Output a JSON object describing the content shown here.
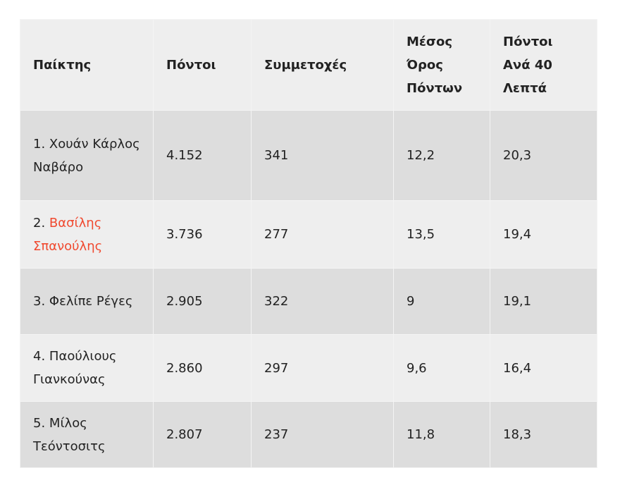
{
  "headers": [
    "Παίκτης",
    "Πόντοι",
    "Συμμετοχές",
    "Μέσος Όρος Πόντων",
    "Πόντοι Ανά 40 Λεπτά"
  ],
  "rows": [
    {
      "rank": "1.",
      "name": "Χουάν Κάρλος Ναβάρο",
      "points": "4.152",
      "games": "341",
      "avg": "12,2",
      "per40": "20,3"
    },
    {
      "rank": "2.",
      "name": "Βασίλης Σπανούλης",
      "points": "3.736",
      "games": "277",
      "avg": "13,5",
      "per40": "19,4",
      "link": true
    },
    {
      "rank": "3.",
      "name": "Φελίπε Ρέγες",
      "points": "2.905",
      "games": "322",
      "avg": "9",
      "per40": "19,1"
    },
    {
      "rank": "4.",
      "name": "Παούλιους Γιανκούνας",
      "points": "2.860",
      "games": "297",
      "avg": "9,6",
      "per40": "16,4"
    },
    {
      "rank": "5.",
      "name": "Μίλος Τεόντοσιτς",
      "points": "2.807",
      "games": "237",
      "avg": "11,8",
      "per40": "18,3"
    }
  ],
  "colors": {
    "link": "#f0492f",
    "header_bg": "#eeeeee",
    "row_dark": "#dddddd",
    "row_light": "#eeeeee"
  }
}
